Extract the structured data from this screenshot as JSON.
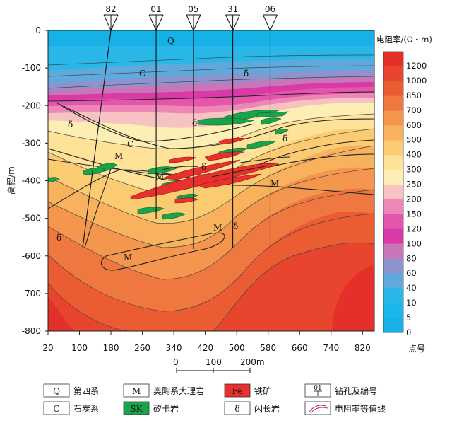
{
  "axes": {
    "y_label": "高程/m",
    "x_label": "点号",
    "y_ticks": [
      "0",
      "-100",
      "-200",
      "-300",
      "-400",
      "-500",
      "-600",
      "-700",
      "-800"
    ],
    "x_ticks": [
      "20",
      "100",
      "180",
      "260",
      "340",
      "420",
      "500",
      "580",
      "660",
      "740",
      "820"
    ]
  },
  "boreholes": [
    {
      "id": "82",
      "x": 180
    },
    {
      "id": "01",
      "x": 295
    },
    {
      "id": "05",
      "x": 390
    },
    {
      "id": "31",
      "x": 490
    },
    {
      "id": "06",
      "x": 585
    }
  ],
  "colorbar": {
    "title": "电阻率/(Ω・m)",
    "levels": [
      "1200",
      "1000",
      "850",
      "700",
      "600",
      "500",
      "400",
      "300",
      "250",
      "200",
      "150",
      "120",
      "100",
      "80",
      "60",
      "40",
      "10",
      "5",
      "0"
    ],
    "colors": [
      "#e52f2b",
      "#e8452f",
      "#ec5c33",
      "#ef7840",
      "#f4964d",
      "#f8b25e",
      "#fbcb72",
      "#fde297",
      "#fdeeb4",
      "#f7c2c2",
      "#ee86b6",
      "#e455ac",
      "#d93aa6",
      "#c876b9",
      "#8f93cd",
      "#5fa9dd",
      "#29b7e8",
      "#1ab7ea",
      "#16b2e7"
    ]
  },
  "scale_bar": {
    "labels": [
      "0",
      "100",
      "200m"
    ]
  },
  "geo_labels": {
    "quaternary": "Q",
    "carboniferous": "C",
    "marble": "M",
    "diorite": "δ"
  },
  "legend": [
    {
      "key": "Q",
      "text": "第四系",
      "type": "box"
    },
    {
      "key": "M",
      "text": "奥陶系大理岩",
      "type": "box"
    },
    {
      "key": "Fe",
      "text": "铁矿",
      "type": "red"
    },
    {
      "key": "01",
      "text": "钻孔及编号",
      "type": "drill"
    },
    {
      "key": "C",
      "text": "石炭系",
      "type": "box"
    },
    {
      "key": "SK",
      "text": "矽卡岩",
      "type": "green"
    },
    {
      "key": "δ",
      "text": "闪长岩",
      "type": "box"
    },
    {
      "key": "",
      "text": "电阻率等值线",
      "type": "line"
    }
  ],
  "colors": {
    "iron_ore": "#e8302c",
    "skarn": "#1aa34a",
    "outline": "#222222"
  }
}
